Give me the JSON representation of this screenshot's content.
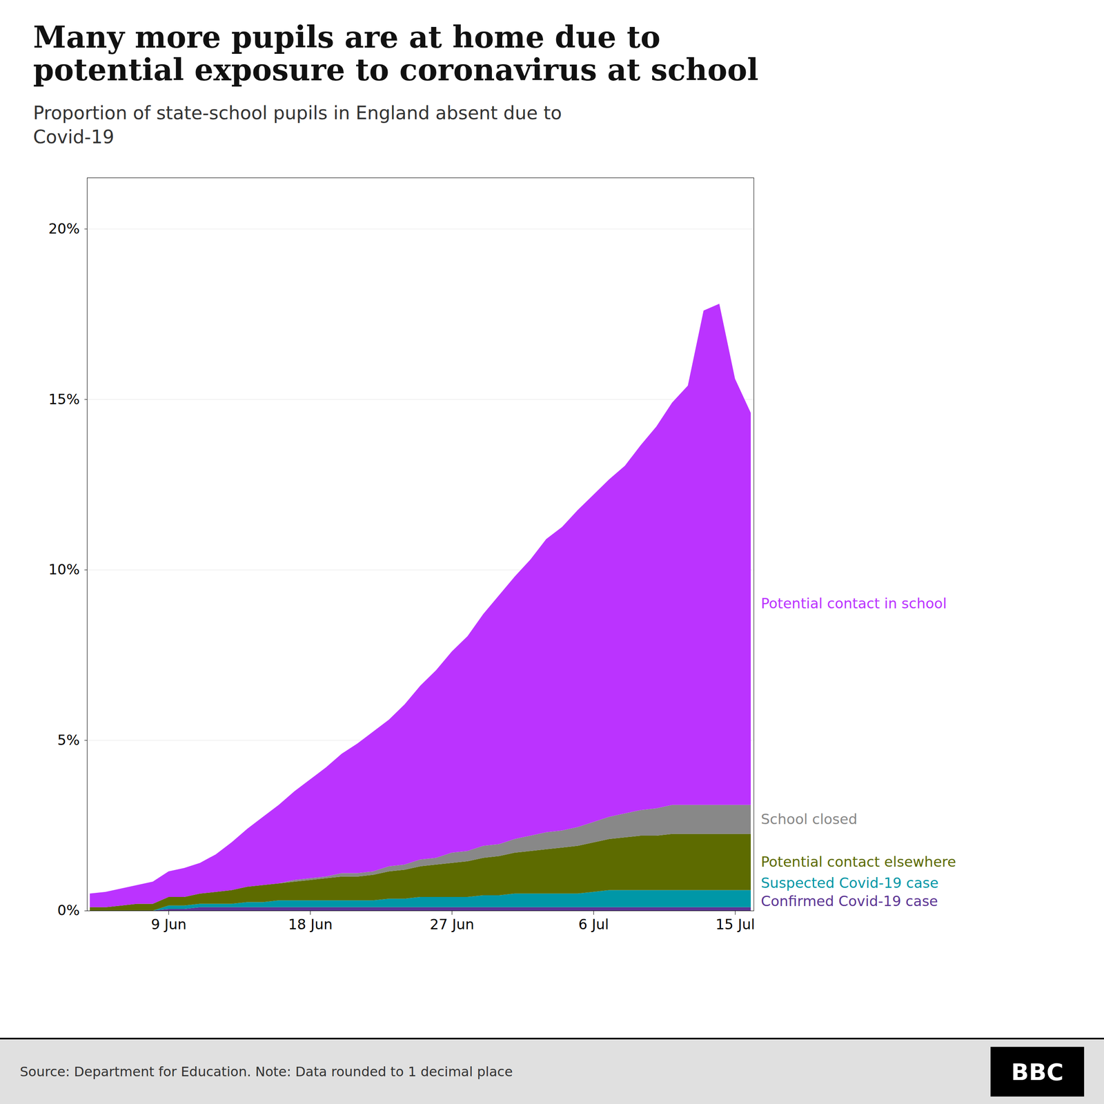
{
  "chart_data": {
    "type": "area",
    "stacked": true,
    "title": "Many more pupils are at home due to\npotential exposure to coronavirus at school",
    "subtitle": "Proportion of state-school pupils in England absent due to\nCovid-19",
    "source": "Source: Department for Education. Note: Data rounded to 1 decimal place",
    "logo": "BBC",
    "categories": [
      null,
      null,
      null,
      null,
      null,
      "9 Jun",
      null,
      null,
      null,
      null,
      null,
      null,
      null,
      null,
      "18 Jun",
      null,
      null,
      null,
      null,
      null,
      null,
      null,
      null,
      "27 Jun",
      null,
      null,
      null,
      null,
      null,
      null,
      null,
      null,
      "6 Jul",
      null,
      null,
      null,
      null,
      null,
      null,
      null,
      null,
      "15 Jul",
      null
    ],
    "series": [
      {
        "name": "Confirmed Covid-19 case",
        "color": "#5c3594",
        "values": [
          0.0,
          0.0,
          0.0,
          0.0,
          0.0,
          0.05,
          0.05,
          0.1,
          0.1,
          0.1,
          0.1,
          0.1,
          0.1,
          0.1,
          0.1,
          0.1,
          0.1,
          0.1,
          0.1,
          0.1,
          0.1,
          0.1,
          0.1,
          0.1,
          0.1,
          0.1,
          0.1,
          0.1,
          0.1,
          0.1,
          0.1,
          0.1,
          0.1,
          0.1,
          0.1,
          0.1,
          0.1,
          0.1,
          0.1,
          0.1,
          0.1,
          0.1,
          0.1
        ]
      },
      {
        "name": "Suspected Covid-19 case",
        "color": "#0097a7",
        "values": [
          0.0,
          0.0,
          0.0,
          0.0,
          0.0,
          0.1,
          0.1,
          0.1,
          0.1,
          0.1,
          0.15,
          0.15,
          0.2,
          0.2,
          0.2,
          0.2,
          0.2,
          0.2,
          0.2,
          0.25,
          0.25,
          0.3,
          0.3,
          0.3,
          0.3,
          0.35,
          0.35,
          0.4,
          0.4,
          0.4,
          0.4,
          0.4,
          0.45,
          0.5,
          0.5,
          0.5,
          0.5,
          0.5,
          0.5,
          0.5,
          0.5,
          0.5,
          0.5
        ]
      },
      {
        "name": "Potential contact elsewhere",
        "color": "#5d6b00",
        "values": [
          0.1,
          0.1,
          0.15,
          0.2,
          0.2,
          0.25,
          0.25,
          0.3,
          0.35,
          0.4,
          0.45,
          0.5,
          0.5,
          0.55,
          0.6,
          0.65,
          0.7,
          0.7,
          0.75,
          0.8,
          0.85,
          0.9,
          0.95,
          1.0,
          1.05,
          1.1,
          1.15,
          1.2,
          1.25,
          1.3,
          1.35,
          1.4,
          1.45,
          1.5,
          1.55,
          1.6,
          1.6,
          1.65,
          1.65,
          1.65,
          1.65,
          1.65,
          1.65
        ]
      },
      {
        "name": "School closed",
        "color": "#888888",
        "values": [
          0.0,
          0.0,
          0.0,
          0.0,
          0.0,
          0.0,
          0.0,
          0.0,
          0.0,
          0.0,
          0.0,
          0.0,
          0.0,
          0.05,
          0.05,
          0.05,
          0.1,
          0.1,
          0.1,
          0.15,
          0.15,
          0.2,
          0.2,
          0.3,
          0.3,
          0.35,
          0.35,
          0.4,
          0.45,
          0.5,
          0.5,
          0.55,
          0.6,
          0.65,
          0.7,
          0.75,
          0.8,
          0.85,
          0.85,
          0.85,
          0.85,
          0.85,
          0.85
        ]
      },
      {
        "name": "Potential contact in school",
        "color": "#bb33ff",
        "values": [
          0.4,
          0.45,
          0.5,
          0.55,
          0.65,
          0.75,
          0.85,
          0.9,
          1.1,
          1.4,
          1.7,
          2.0,
          2.3,
          2.6,
          2.9,
          3.2,
          3.5,
          3.8,
          4.1,
          4.3,
          4.7,
          5.1,
          5.5,
          5.9,
          6.3,
          6.8,
          7.3,
          7.7,
          8.1,
          8.6,
          8.9,
          9.3,
          9.6,
          9.9,
          10.2,
          10.7,
          11.2,
          11.8,
          12.3,
          14.5,
          14.7,
          12.5,
          11.5
        ]
      }
    ],
    "ylim": [
      0,
      21.5
    ],
    "yticks": [
      {
        "value": 0,
        "label": "0%"
      },
      {
        "value": 5,
        "label": "5%"
      },
      {
        "value": 10,
        "label": "10%"
      },
      {
        "value": 15,
        "label": "15%"
      },
      {
        "value": 20,
        "label": "20%"
      }
    ],
    "grid": true
  }
}
